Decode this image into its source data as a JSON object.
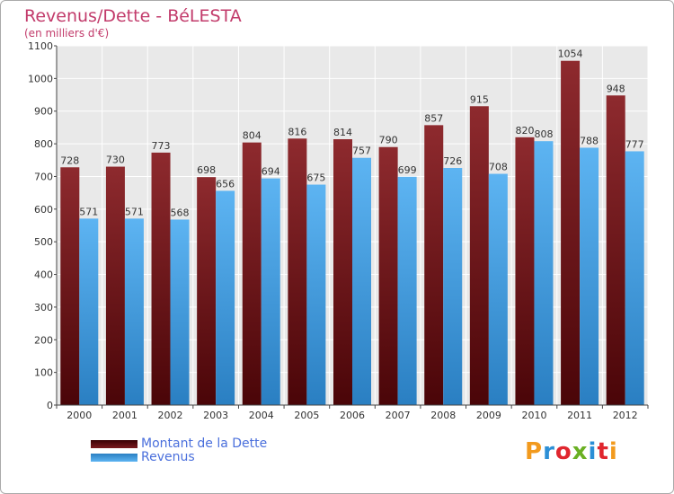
{
  "title": "Revenus/Dette - BéLESTA",
  "subtitle": "(en milliers d'€)",
  "logo": {
    "text": "Proxiti",
    "letter_colors": [
      "#f29a1e",
      "#2c8fd6",
      "#e0262e",
      "#6ab023",
      "#2c8fd6",
      "#e0262e",
      "#f29a1e"
    ]
  },
  "legend": [
    {
      "label": "Montant de la Dette",
      "color": "#6b0f12"
    },
    {
      "label": "Revenus",
      "color": "#3b9ee6"
    }
  ],
  "chart_data": {
    "type": "bar",
    "title": "Revenus/Dette - BéLESTA",
    "ylabel": "",
    "xlabel": "",
    "categories": [
      "2000",
      "2001",
      "2002",
      "2003",
      "2004",
      "2005",
      "2006",
      "2007",
      "2008",
      "2009",
      "2010",
      "2011",
      "2012"
    ],
    "series": [
      {
        "name": "Montant de la Dette",
        "color": "#7a1a1e",
        "values": [
          728,
          730,
          773,
          698,
          804,
          816,
          814,
          790,
          857,
          915,
          820,
          1054,
          948
        ]
      },
      {
        "name": "Revenus",
        "color": "#4aa8ec",
        "values": [
          571,
          571,
          568,
          656,
          694,
          675,
          757,
          699,
          726,
          708,
          808,
          788,
          777
        ]
      }
    ],
    "ylim": [
      0,
      1100
    ],
    "yticks": [
      0,
      100,
      200,
      300,
      400,
      500,
      600,
      700,
      800,
      900,
      1000,
      1100
    ],
    "grid": true,
    "legend_position": "bottom-left"
  }
}
